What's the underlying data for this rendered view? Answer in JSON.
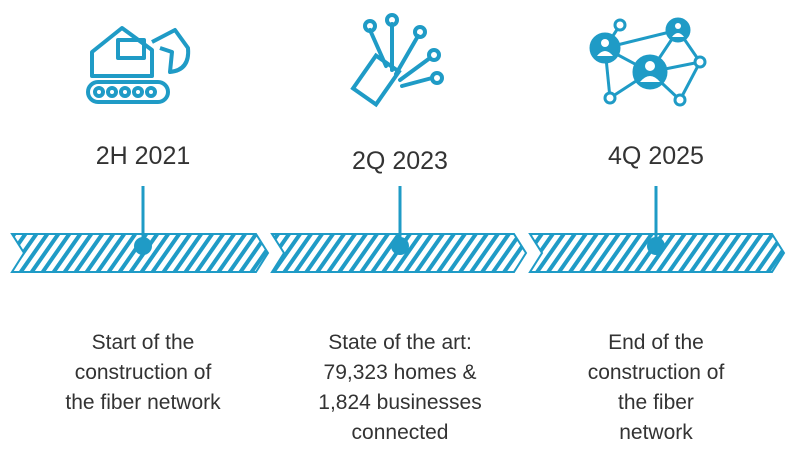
{
  "milestones": [
    {
      "date": "2H 2021",
      "description": [
        "Start of the",
        "construction of",
        "the fiber network"
      ]
    },
    {
      "date": "2Q 2023",
      "description": [
        "State of the art:",
        "79,323 homes &",
        "1,824 businesses",
        "connected"
      ]
    },
    {
      "date": "4Q 2025",
      "description": [
        "End of the",
        "construction of",
        "the fiber",
        "network"
      ]
    }
  ]
}
